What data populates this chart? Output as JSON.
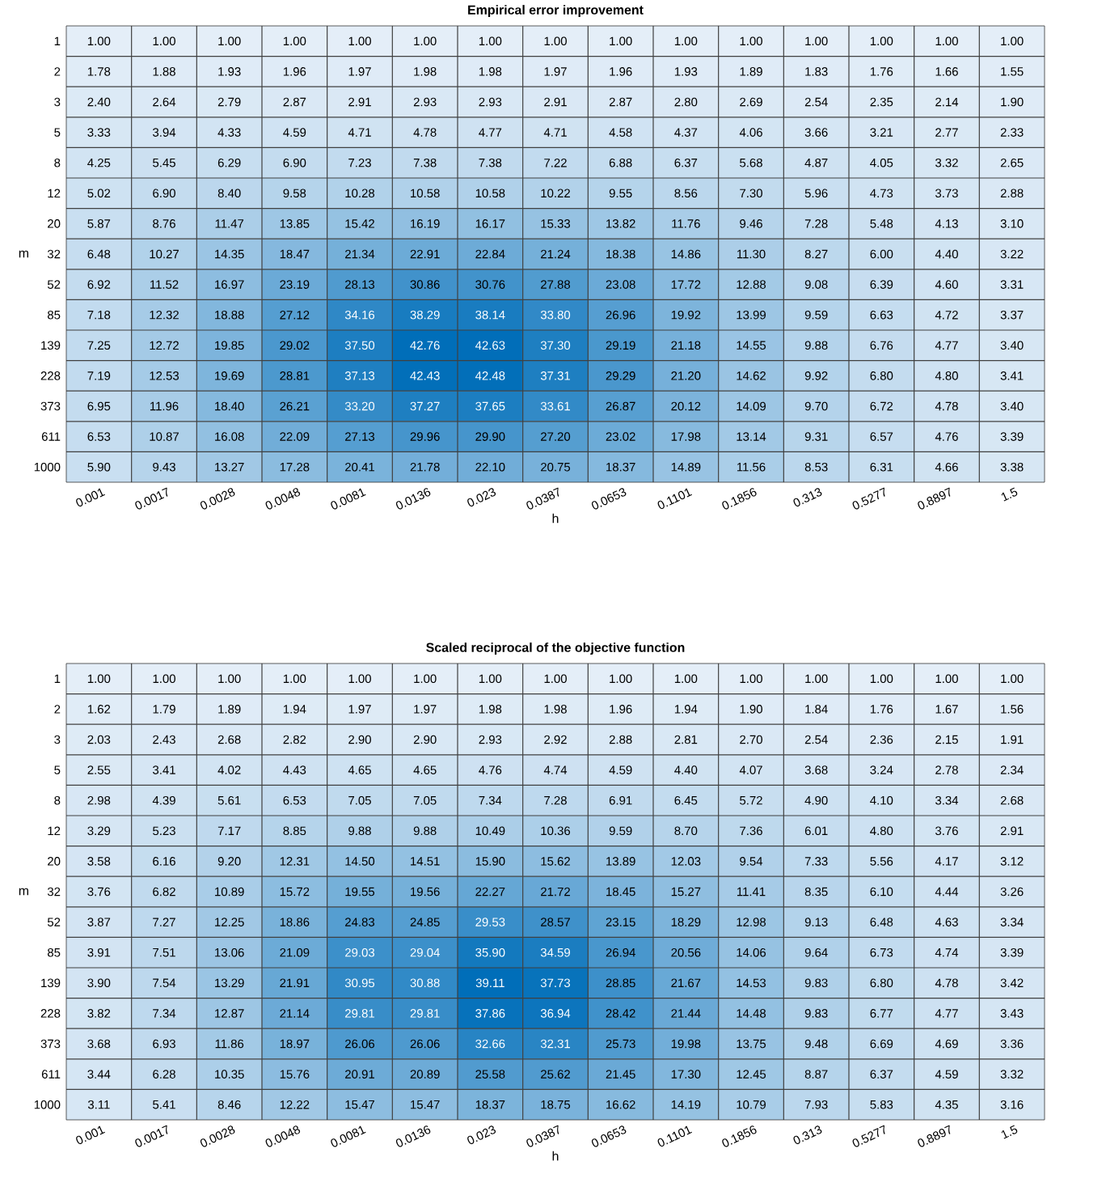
{
  "chart_data": [
    {
      "type": "heatmap",
      "title": "Empirical error improvement",
      "xlabel": "h",
      "ylabel": "m",
      "categories": [
        "0.001",
        "0.0017",
        "0.0028",
        "0.0048",
        "0.0081",
        "0.0136",
        "0.023",
        "0.0387",
        "0.0653",
        "0.1101",
        "0.1856",
        "0.313",
        "0.5277",
        "0.8897",
        "1.5"
      ],
      "y_categories": [
        "1",
        "2",
        "3",
        "5",
        "8",
        "12",
        "20",
        "32",
        "52",
        "85",
        "139",
        "228",
        "373",
        "611",
        "1000"
      ],
      "cells": [
        [
          1.0,
          1.0,
          1.0,
          1.0,
          1.0,
          1.0,
          1.0,
          1.0,
          1.0,
          1.0,
          1.0,
          1.0,
          1.0,
          1.0,
          1.0
        ],
        [
          1.78,
          1.88,
          1.93,
          1.96,
          1.97,
          1.98,
          1.98,
          1.97,
          1.96,
          1.93,
          1.89,
          1.83,
          1.76,
          1.66,
          1.55
        ],
        [
          2.4,
          2.64,
          2.79,
          2.87,
          2.91,
          2.93,
          2.93,
          2.91,
          2.87,
          2.8,
          2.69,
          2.54,
          2.35,
          2.14,
          1.9
        ],
        [
          3.33,
          3.94,
          4.33,
          4.59,
          4.71,
          4.78,
          4.77,
          4.71,
          4.58,
          4.37,
          4.06,
          3.66,
          3.21,
          2.77,
          2.33
        ],
        [
          4.25,
          5.45,
          6.29,
          6.9,
          7.23,
          7.38,
          7.38,
          7.22,
          6.88,
          6.37,
          5.68,
          4.87,
          4.05,
          3.32,
          2.65
        ],
        [
          5.02,
          6.9,
          8.4,
          9.58,
          10.28,
          10.58,
          10.58,
          10.22,
          9.55,
          8.56,
          7.3,
          5.96,
          4.73,
          3.73,
          2.88
        ],
        [
          5.87,
          8.76,
          11.47,
          13.85,
          15.42,
          16.19,
          16.17,
          15.33,
          13.82,
          11.76,
          9.46,
          7.28,
          5.48,
          4.13,
          3.1
        ],
        [
          6.48,
          10.27,
          14.35,
          18.47,
          21.34,
          22.91,
          22.84,
          21.24,
          18.38,
          14.86,
          11.3,
          8.27,
          6.0,
          4.4,
          3.22
        ],
        [
          6.92,
          11.52,
          16.97,
          23.19,
          28.13,
          30.86,
          30.76,
          27.88,
          23.08,
          17.72,
          12.88,
          9.08,
          6.39,
          4.6,
          3.31
        ],
        [
          7.18,
          12.32,
          18.88,
          27.12,
          34.16,
          38.29,
          38.14,
          33.8,
          26.96,
          19.92,
          13.99,
          9.59,
          6.63,
          4.72,
          3.37
        ],
        [
          7.25,
          12.72,
          19.85,
          29.02,
          37.5,
          42.76,
          42.63,
          37.3,
          29.19,
          21.18,
          14.55,
          9.88,
          6.76,
          4.77,
          3.4
        ],
        [
          7.19,
          12.53,
          19.69,
          28.81,
          37.13,
          42.43,
          42.48,
          37.31,
          29.29,
          21.2,
          14.62,
          9.92,
          6.8,
          4.8,
          3.41
        ],
        [
          6.95,
          11.96,
          18.4,
          26.21,
          33.2,
          37.27,
          37.65,
          33.61,
          26.87,
          20.12,
          14.09,
          9.7,
          6.72,
          4.78,
          3.4
        ],
        [
          6.53,
          10.87,
          16.08,
          22.09,
          27.13,
          29.96,
          29.9,
          27.2,
          23.02,
          17.98,
          13.14,
          9.31,
          6.57,
          4.76,
          3.39
        ],
        [
          5.9,
          9.43,
          13.27,
          17.28,
          20.41,
          21.78,
          22.1,
          20.75,
          18.37,
          14.89,
          11.56,
          8.53,
          6.31,
          4.66,
          3.38
        ]
      ],
      "cell_labels": [
        [
          "1.00",
          "1.00",
          "1.00",
          "1.00",
          "1.00",
          "1.00",
          "1.00",
          "1.00",
          "1.00",
          "1.00",
          "1.00",
          "1.00",
          "1.00",
          "1.00",
          "1.00"
        ],
        [
          "1.78",
          "1.88",
          "1.93",
          "1.96",
          "1.97",
          "1.98",
          "1.98",
          "1.97",
          "1.96",
          "1.93",
          "1.89",
          "1.83",
          "1.76",
          "1.66",
          "1.55"
        ],
        [
          "2.40",
          "2.64",
          "2.79",
          "2.87",
          "2.91",
          "2.93",
          "2.93",
          "2.91",
          "2.87",
          "2.80",
          "2.69",
          "2.54",
          "2.35",
          "2.14",
          "1.90"
        ],
        [
          "3.33",
          "3.94",
          "4.33",
          "4.59",
          "4.71",
          "4.78",
          "4.77",
          "4.71",
          "4.58",
          "4.37",
          "4.06",
          "3.66",
          "3.21",
          "2.77",
          "2.33"
        ],
        [
          "4.25",
          "5.45",
          "6.29",
          "6.90",
          "7.23",
          "7.38",
          "7.38",
          "7.22",
          "6.88",
          "6.37",
          "5.68",
          "4.87",
          "4.05",
          "3.32",
          "2.65"
        ],
        [
          "5.02",
          "6.90",
          "8.40",
          "9.58",
          "10.28",
          "10.58",
          "10.58",
          "10.22",
          "9.55",
          "8.56",
          "7.30",
          "5.96",
          "4.73",
          "3.73",
          "2.88"
        ],
        [
          "5.87",
          "8.76",
          "11.47",
          "13.85",
          "15.42",
          "16.19",
          "16.17",
          "15.33",
          "13.82",
          "11.76",
          "9.46",
          "7.28",
          "5.48",
          "4.13",
          "3.10"
        ],
        [
          "6.48",
          "10.27",
          "14.35",
          "18.47",
          "21.34",
          "22.91",
          "22.84",
          "21.24",
          "18.38",
          "14.86",
          "11.30",
          "8.27",
          "6.00",
          "4.40",
          "3.22"
        ],
        [
          "6.92",
          "11.52",
          "16.97",
          "23.19",
          "28.13",
          "30.86",
          "30.76",
          "27.88",
          "23.08",
          "17.72",
          "12.88",
          "9.08",
          "6.39",
          "4.60",
          "3.31"
        ],
        [
          "7.18",
          "12.32",
          "18.88",
          "27.12",
          "34.16",
          "38.29",
          "38.14",
          "33.80",
          "26.96",
          "19.92",
          "13.99",
          "9.59",
          "6.63",
          "4.72",
          "3.37"
        ],
        [
          "7.25",
          "12.72",
          "19.85",
          "29.02",
          "37.50",
          "42.76",
          "42.63",
          "37.30",
          "29.19",
          "21.18",
          "14.55",
          "9.88",
          "6.76",
          "4.77",
          "3.40"
        ],
        [
          "7.19",
          "12.53",
          "19.69",
          "28.81",
          "37.13",
          "42.43",
          "42.48",
          "37.31",
          "29.29",
          "21.20",
          "14.62",
          "9.92",
          "6.80",
          "4.80",
          "3.41"
        ],
        [
          "6.95",
          "11.96",
          "18.40",
          "26.21",
          "33.20",
          "37.27",
          "37.65",
          "33.61",
          "26.87",
          "20.12",
          "14.09",
          "9.70",
          "6.72",
          "4.78",
          "3.40"
        ],
        [
          "6.53",
          "10.87",
          "16.08",
          "22.09",
          "27.13",
          "29.96",
          "29.90",
          "27.20",
          "23.02",
          "17.98",
          "13.14",
          "9.31",
          "6.57",
          "4.76",
          "3.39"
        ],
        [
          "5.90",
          "9.43",
          "13.27",
          "17.28",
          "20.41",
          "21.78",
          "22.10",
          "20.75",
          "18.37",
          "14.89",
          "11.56",
          "8.53",
          "6.31",
          "4.66",
          "3.38"
        ]
      ]
    },
    {
      "type": "heatmap",
      "title": "Scaled reciprocal of the objective function",
      "xlabel": "h",
      "ylabel": "m",
      "categories": [
        "0.001",
        "0.0017",
        "0.0028",
        "0.0048",
        "0.0081",
        "0.0136",
        "0.023",
        "0.0387",
        "0.0653",
        "0.1101",
        "0.1856",
        "0.313",
        "0.5277",
        "0.8897",
        "1.5"
      ],
      "y_categories": [
        "1",
        "2",
        "3",
        "5",
        "8",
        "12",
        "20",
        "32",
        "52",
        "85",
        "139",
        "228",
        "373",
        "611",
        "1000"
      ],
      "cells": [
        [
          1.0,
          1.0,
          1.0,
          1.0,
          1.0,
          1.0,
          1.0,
          1.0,
          1.0,
          1.0,
          1.0,
          1.0,
          1.0,
          1.0,
          1.0
        ],
        [
          1.62,
          1.79,
          1.89,
          1.94,
          1.97,
          1.97,
          1.98,
          1.98,
          1.96,
          1.94,
          1.9,
          1.84,
          1.76,
          1.67,
          1.56
        ],
        [
          2.03,
          2.43,
          2.68,
          2.82,
          2.9,
          2.9,
          2.93,
          2.92,
          2.88,
          2.81,
          2.7,
          2.54,
          2.36,
          2.15,
          1.91
        ],
        [
          2.55,
          3.41,
          4.02,
          4.43,
          4.65,
          4.65,
          4.76,
          4.74,
          4.59,
          4.4,
          4.07,
          3.68,
          3.24,
          2.78,
          2.34
        ],
        [
          2.98,
          4.39,
          5.61,
          6.53,
          7.05,
          7.05,
          7.34,
          7.28,
          6.91,
          6.45,
          5.72,
          4.9,
          4.1,
          3.34,
          2.68
        ],
        [
          3.29,
          5.23,
          7.17,
          8.85,
          9.88,
          9.88,
          10.49,
          10.36,
          9.59,
          8.7,
          7.36,
          6.01,
          4.8,
          3.76,
          2.91
        ],
        [
          3.58,
          6.16,
          9.2,
          12.31,
          14.5,
          14.51,
          15.9,
          15.62,
          13.89,
          12.03,
          9.54,
          7.33,
          5.56,
          4.17,
          3.12
        ],
        [
          3.76,
          6.82,
          10.89,
          15.72,
          19.55,
          19.56,
          22.27,
          21.72,
          18.45,
          15.27,
          11.41,
          8.35,
          6.1,
          4.44,
          3.26
        ],
        [
          3.87,
          7.27,
          12.25,
          18.86,
          24.83,
          24.85,
          29.53,
          28.57,
          23.15,
          18.29,
          12.98,
          9.13,
          6.48,
          4.63,
          3.34
        ],
        [
          3.91,
          7.51,
          13.06,
          21.09,
          29.03,
          29.04,
          35.9,
          34.59,
          26.94,
          20.56,
          14.06,
          9.64,
          6.73,
          4.74,
          3.39
        ],
        [
          3.9,
          7.54,
          13.29,
          21.91,
          30.95,
          30.88,
          39.11,
          37.73,
          28.85,
          21.67,
          14.53,
          9.83,
          6.8,
          4.78,
          3.42
        ],
        [
          3.82,
          7.34,
          12.87,
          21.14,
          29.81,
          29.81,
          37.86,
          36.94,
          28.42,
          21.44,
          14.48,
          9.83,
          6.77,
          4.77,
          3.43
        ],
        [
          3.68,
          6.93,
          11.86,
          18.97,
          26.06,
          26.06,
          32.66,
          32.31,
          25.73,
          19.98,
          13.75,
          9.48,
          6.69,
          4.69,
          3.36
        ],
        [
          3.44,
          6.28,
          10.35,
          15.76,
          20.91,
          20.89,
          25.58,
          25.62,
          21.45,
          17.3,
          12.45,
          8.87,
          6.37,
          4.59,
          3.32
        ],
        [
          3.11,
          5.41,
          8.46,
          12.22,
          15.47,
          15.47,
          18.37,
          18.75,
          16.62,
          14.19,
          10.79,
          7.93,
          5.83,
          4.35,
          3.16
        ]
      ],
      "cell_labels": [
        [
          "1.00",
          "1.00",
          "1.00",
          "1.00",
          "1.00",
          "1.00",
          "1.00",
          "1.00",
          "1.00",
          "1.00",
          "1.00",
          "1.00",
          "1.00",
          "1.00",
          "1.00"
        ],
        [
          "1.62",
          "1.79",
          "1.89",
          "1.94",
          "1.97",
          "1.97",
          "1.98",
          "1.98",
          "1.96",
          "1.94",
          "1.90",
          "1.84",
          "1.76",
          "1.67",
          "1.56"
        ],
        [
          "2.03",
          "2.43",
          "2.68",
          "2.82",
          "2.90",
          "2.90",
          "2.93",
          "2.92",
          "2.88",
          "2.81",
          "2.70",
          "2.54",
          "2.36",
          "2.15",
          "1.91"
        ],
        [
          "2.55",
          "3.41",
          "4.02",
          "4.43",
          "4.65",
          "4.65",
          "4.76",
          "4.74",
          "4.59",
          "4.40",
          "4.07",
          "3.68",
          "3.24",
          "2.78",
          "2.34"
        ],
        [
          "2.98",
          "4.39",
          "5.61",
          "6.53",
          "7.05",
          "7.05",
          "7.34",
          "7.28",
          "6.91",
          "6.45",
          "5.72",
          "4.90",
          "4.10",
          "3.34",
          "2.68"
        ],
        [
          "3.29",
          "5.23",
          "7.17",
          "8.85",
          "9.88",
          "9.88",
          "10.49",
          "10.36",
          "9.59",
          "8.70",
          "7.36",
          "6.01",
          "4.80",
          "3.76",
          "2.91"
        ],
        [
          "3.58",
          "6.16",
          "9.20",
          "12.31",
          "14.50",
          "14.51",
          "15.90",
          "15.62",
          "13.89",
          "12.03",
          "9.54",
          "7.33",
          "5.56",
          "4.17",
          "3.12"
        ],
        [
          "3.76",
          "6.82",
          "10.89",
          "15.72",
          "19.55",
          "19.56",
          "22.27",
          "21.72",
          "18.45",
          "15.27",
          "11.41",
          "8.35",
          "6.10",
          "4.44",
          "3.26"
        ],
        [
          "3.87",
          "7.27",
          "12.25",
          "18.86",
          "24.83",
          "24.85",
          "29.53",
          "28.57",
          "23.15",
          "18.29",
          "12.98",
          "9.13",
          "6.48",
          "4.63",
          "3.34"
        ],
        [
          "3.91",
          "7.51",
          "13.06",
          "21.09",
          "29.03",
          "29.04",
          "35.90",
          "34.59",
          "26.94",
          "20.56",
          "14.06",
          "9.64",
          "6.73",
          "4.74",
          "3.39"
        ],
        [
          "3.90",
          "7.54",
          "13.29",
          "21.91",
          "30.95",
          "30.88",
          "39.11",
          "37.73",
          "28.85",
          "21.67",
          "14.53",
          "9.83",
          "6.80",
          "4.78",
          "3.42"
        ],
        [
          "3.82",
          "7.34",
          "12.87",
          "21.14",
          "29.81",
          "29.81",
          "37.86",
          "36.94",
          "28.42",
          "21.44",
          "14.48",
          "9.83",
          "6.77",
          "4.77",
          "3.43"
        ],
        [
          "3.68",
          "6.93",
          "11.86",
          "18.97",
          "26.06",
          "26.06",
          "32.66",
          "32.31",
          "25.73",
          "19.98",
          "13.75",
          "9.48",
          "6.69",
          "4.69",
          "3.36"
        ],
        [
          "3.44",
          "6.28",
          "10.35",
          "15.76",
          "20.91",
          "20.89",
          "25.58",
          "25.62",
          "21.45",
          "17.30",
          "12.45",
          "8.87",
          "6.37",
          "4.59",
          "3.32"
        ],
        [
          "3.11",
          "5.41",
          "8.46",
          "12.22",
          "15.47",
          "15.47",
          "18.37",
          "18.75",
          "16.62",
          "14.19",
          "10.79",
          "7.93",
          "5.83",
          "4.35",
          "3.16"
        ]
      ]
    }
  ]
}
